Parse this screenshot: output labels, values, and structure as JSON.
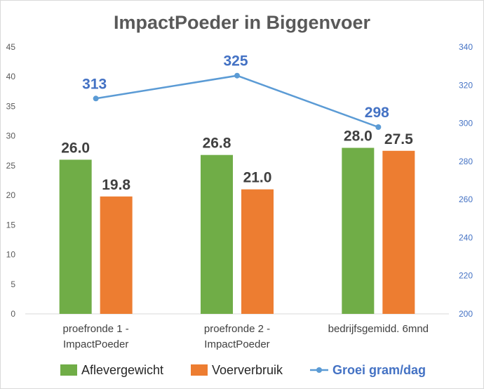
{
  "chart_data": {
    "type": "bar",
    "title": "ImpactPoeder in Biggenvoer",
    "categories": [
      [
        "proefronde 1 -",
        "ImpactPoeder"
      ],
      [
        "proefronde 2 -",
        "ImpactPoeder"
      ],
      [
        "bedrijfsgemidd. 6mnd"
      ]
    ],
    "y_left": {
      "min": 0,
      "max": 45,
      "step": 5
    },
    "y_right": {
      "min": 200,
      "max": 340,
      "step": 20
    },
    "series": [
      {
        "name": "Aflevergewicht",
        "type": "bar",
        "axis": "left",
        "color": "#70ad47",
        "values": [
          26.0,
          26.8,
          28.0
        ],
        "labels": [
          "26.0",
          "26.8",
          "28.0"
        ]
      },
      {
        "name": "Voerverbruik",
        "type": "bar",
        "axis": "left",
        "color": "#ed7d31",
        "values": [
          19.8,
          21.0,
          27.5
        ],
        "labels": [
          "19.8",
          "21.0",
          "27.5"
        ]
      },
      {
        "name": "Groei gram/dag",
        "type": "line",
        "axis": "right",
        "color": "#5b9bd5",
        "values": [
          313,
          325,
          298
        ],
        "labels": [
          "313",
          "325",
          "298"
        ]
      }
    ],
    "grid": false,
    "legend_position": "bottom"
  }
}
